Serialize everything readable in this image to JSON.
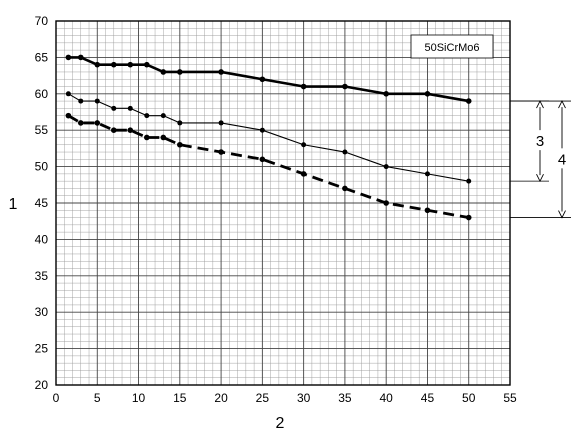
{
  "chart_data": {
    "type": "line",
    "title": "",
    "xlabel": "2",
    "ylabel": "1",
    "xlim": [
      0,
      55
    ],
    "ylim": [
      20,
      70
    ],
    "xticks": [
      0,
      5,
      10,
      15,
      20,
      25,
      30,
      35,
      40,
      45,
      50,
      55
    ],
    "yticks": [
      20,
      25,
      30,
      35,
      40,
      45,
      50,
      55,
      60,
      65,
      70
    ],
    "grid": true,
    "legend_box": "50SiCrMo6",
    "series": [
      {
        "style": "thick-solid",
        "x": [
          1.5,
          3,
          5,
          7,
          9,
          11,
          13,
          15,
          20,
          25,
          30,
          35,
          40,
          45,
          50
        ],
        "y": [
          65,
          65,
          64,
          64,
          64,
          64,
          63,
          63,
          63,
          62,
          61,
          61,
          60,
          60,
          59
        ]
      },
      {
        "style": "thin-solid",
        "x": [
          1.5,
          3,
          5,
          7,
          9,
          11,
          13,
          15,
          20,
          25,
          30,
          35,
          40,
          45,
          50
        ],
        "y": [
          60,
          59,
          59,
          58,
          58,
          57,
          57,
          56,
          56,
          55,
          53,
          52,
          50,
          49,
          48
        ]
      },
      {
        "style": "dashed",
        "x": [
          1.5,
          3,
          5,
          7,
          9,
          11,
          13,
          15,
          20,
          25,
          30,
          35,
          40,
          45,
          50
        ],
        "y": [
          57,
          56,
          56,
          55,
          55,
          54,
          54,
          53,
          52,
          51,
          49,
          47,
          45,
          44,
          43
        ]
      }
    ],
    "brackets": [
      {
        "label": "3",
        "from": 59,
        "to": 48
      },
      {
        "label": "4",
        "from": 59,
        "to": 43
      }
    ]
  }
}
